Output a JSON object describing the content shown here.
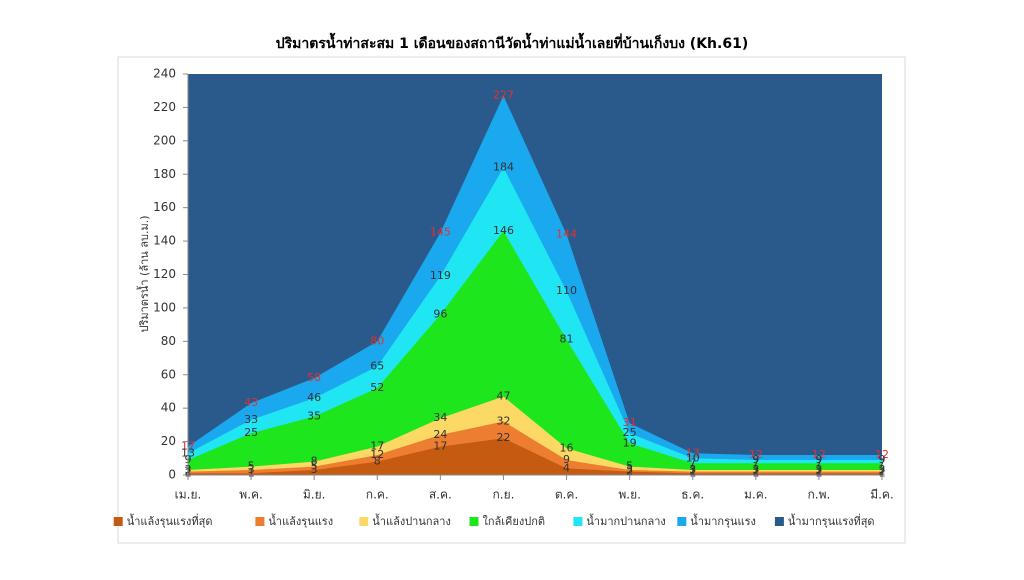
{
  "chart_data": {
    "type": "area",
    "title": "ปริมาตรน้ำท่าสะสม 1 เดือนของสถานีวัดน้ำท่าแม่น้ำเลยที่บ้านเก็งบง (Kh.61)",
    "y_label": "ปริมาตรน้ำ (ล้าน ลบ.ม.)",
    "categories": [
      "เม.ย.",
      "พ.ค.",
      "มิ.ย.",
      "ก.ค.",
      "ส.ค.",
      "ก.ย.",
      "ต.ค.",
      "พ.ย.",
      "ธ.ค.",
      "ม.ค.",
      "ก.พ.",
      "มี.ค."
    ],
    "ylim": [
      0,
      240
    ],
    "yticks": [
      0,
      20,
      40,
      60,
      80,
      100,
      120,
      140,
      160,
      180,
      200,
      220,
      240
    ],
    "series": [
      {
        "name": "น้ำมากรุนแรงที่สุด",
        "color": "#2a5a8c"
      },
      {
        "name": "น้ำมากรุนแรง",
        "color": "#1aa9ee",
        "label_color": "#e0312f",
        "values": [
          17,
          43,
          58,
          80,
          145,
          227,
          144,
          31,
          13,
          12,
          12,
          12
        ]
      },
      {
        "name": "น้ำมากปานกลาง",
        "color": "#1fe6f2",
        "label_color": "#333333",
        "values": [
          13,
          33,
          46,
          65,
          119,
          184,
          110,
          25,
          10,
          9,
          9,
          9
        ]
      },
      {
        "name": "ใกล้เคียงปกติ",
        "color": "#1de61d",
        "label_color": "#333333",
        "values": [
          9,
          25,
          35,
          52,
          96,
          146,
          81,
          19,
          7,
          7,
          7,
          7
        ]
      },
      {
        "name": "น้ำแล้งปานกลาง",
        "color": "#fbd964",
        "label_color": "#333333",
        "values": [
          3,
          5,
          8,
          17,
          34,
          47,
          16,
          5,
          3,
          3,
          3,
          3
        ]
      },
      {
        "name": "น้ำแล้งรุนแรง",
        "color": "#ed7d31",
        "label_color": "#333333",
        "values": [
          2,
          3,
          5,
          12,
          24,
          32,
          9,
          3,
          2,
          2,
          2,
          2
        ]
      },
      {
        "name": "น้ำแล้งรุนแรงที่สุด",
        "color": "#c55a11",
        "label_color": "#333333",
        "values": [
          1,
          1,
          3,
          8,
          17,
          22,
          4,
          2,
          1,
          1,
          1,
          1
        ]
      }
    ]
  }
}
